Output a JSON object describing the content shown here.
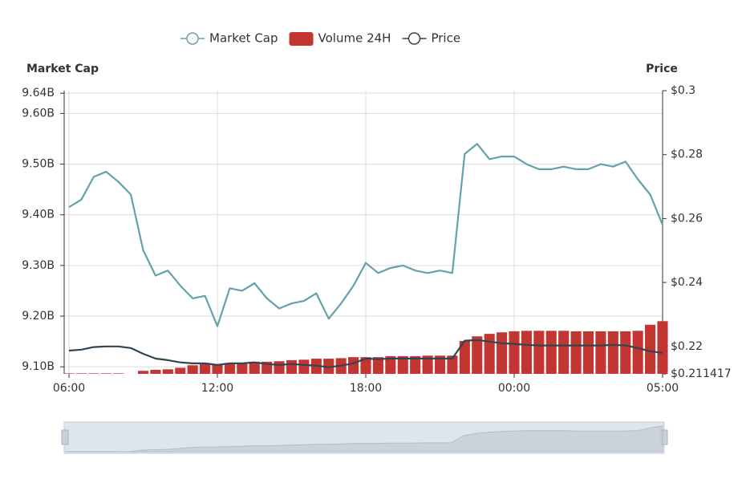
{
  "chart_data": {
    "type": "line",
    "y_axis_label": "Market Cap",
    "y2_axis_label": "Price",
    "categories": [
      "06:00",
      null,
      null,
      null,
      null,
      null,
      null,
      null,
      null,
      null,
      null,
      null,
      "12:00",
      null,
      null,
      null,
      null,
      null,
      null,
      null,
      null,
      null,
      null,
      null,
      "18:00",
      null,
      null,
      null,
      null,
      null,
      null,
      null,
      null,
      null,
      null,
      null,
      "00:00",
      null,
      null,
      null,
      null,
      null,
      null,
      null,
      null,
      null,
      null,
      null,
      "05:00"
    ],
    "series": [
      {
        "name": "Market Cap",
        "type": "line",
        "color": "#65a1ab",
        "values": [
          9.415,
          9.43,
          9.475,
          9.485,
          9.465,
          9.44,
          9.33,
          9.28,
          9.29,
          9.26,
          9.235,
          9.24,
          9.18,
          9.255,
          9.25,
          9.265,
          9.235,
          9.215,
          9.225,
          9.23,
          9.245,
          9.195,
          9.225,
          9.26,
          9.305,
          9.285,
          9.295,
          9.3,
          9.29,
          9.285,
          9.29,
          9.285,
          9.52,
          9.54,
          9.51,
          9.515,
          9.515,
          9.5,
          9.49,
          9.49,
          9.495,
          9.49,
          9.49,
          9.5,
          9.495,
          9.505,
          9.47,
          9.44,
          9.38
        ]
      },
      {
        "name": "Volume 24H",
        "type": "bar",
        "color": "#c23531",
        "values": [
          9.087,
          9.087,
          9.087,
          9.087,
          9.087,
          9.086,
          9.092,
          9.094,
          9.095,
          9.098,
          9.103,
          9.105,
          9.105,
          9.106,
          9.108,
          9.11,
          9.11,
          9.111,
          9.113,
          9.114,
          9.116,
          9.116,
          9.117,
          9.119,
          9.119,
          9.119,
          9.121,
          9.121,
          9.121,
          9.122,
          9.122,
          9.122,
          9.151,
          9.16,
          9.165,
          9.168,
          9.17,
          9.171,
          9.171,
          9.171,
          9.171,
          9.17,
          9.17,
          9.17,
          9.17,
          9.17,
          9.171,
          9.183,
          9.19
        ]
      },
      {
        "name": "Price",
        "type": "line",
        "axis": "y2",
        "color": "#2f4554",
        "values": [
          0.2187,
          0.219,
          0.2198,
          0.22,
          0.22,
          0.2195,
          0.2177,
          0.2162,
          0.2157,
          0.215,
          0.2147,
          0.2147,
          0.2142,
          0.2147,
          0.2147,
          0.215,
          0.2145,
          0.2142,
          0.2145,
          0.2142,
          0.214,
          0.2135,
          0.214,
          0.2147,
          0.2162,
          0.216,
          0.2162,
          0.2162,
          0.2162,
          0.2162,
          0.2162,
          0.2162,
          0.2218,
          0.222,
          0.2215,
          0.221,
          0.2208,
          0.2205,
          0.2203,
          0.2203,
          0.2203,
          0.2203,
          0.2203,
          0.2203,
          0.2205,
          0.2203,
          0.2195,
          0.2185,
          0.218
        ]
      }
    ],
    "ylim": [
      9.086,
      9.645
    ],
    "yticks": [
      {
        "value": 9.1,
        "label": "9.10B"
      },
      {
        "value": 9.2,
        "label": "9.20B"
      },
      {
        "value": 9.3,
        "label": "9.30B"
      },
      {
        "value": 9.4,
        "label": "9.40B"
      },
      {
        "value": 9.5,
        "label": "9.50B"
      },
      {
        "value": 9.6,
        "label": "9.60B"
      },
      {
        "value": 9.64,
        "label": "9.64B"
      }
    ],
    "y2lim": [
      0.211417,
      0.3
    ],
    "y2ticks": [
      {
        "value": 0.211417,
        "label": "$0.211417"
      },
      {
        "value": 0.22,
        "label": "$0.22"
      },
      {
        "value": 0.24,
        "label": "$0.24"
      },
      {
        "value": 0.26,
        "label": "$0.26"
      },
      {
        "value": 0.28,
        "label": "$0.28"
      },
      {
        "value": 0.3,
        "label": "$0.3"
      }
    ],
    "grid": true,
    "legend": "top"
  }
}
